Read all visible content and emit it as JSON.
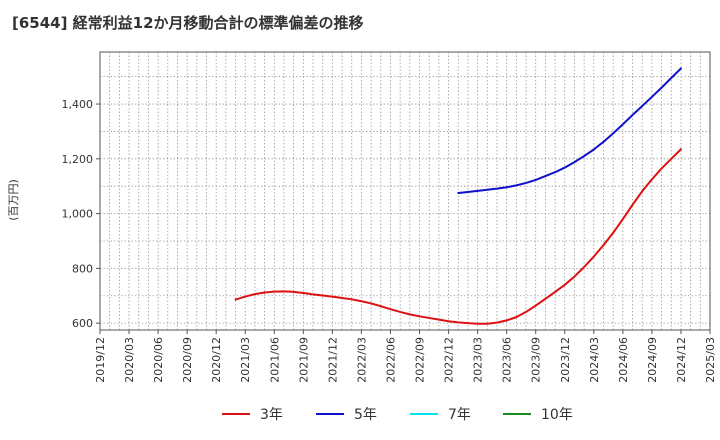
{
  "chart_data": {
    "type": "line",
    "title": "[6544]  経常利益12か月移動合計の標準偏差の推移",
    "ylabel": "(百万円)",
    "xlabel": "",
    "ylim": [
      575,
      1590
    ],
    "yticks": [
      600,
      800,
      1000,
      1200,
      1400
    ],
    "ytick_labels": [
      "600",
      "800",
      "1,000",
      "1,200",
      "1,400"
    ],
    "x_range": [
      "2019/12",
      "2025/03"
    ],
    "x_tick_labels": [
      "2019/12",
      "2020/03",
      "2020/06",
      "2020/09",
      "2020/12",
      "2021/03",
      "2021/06",
      "2021/09",
      "2021/12",
      "2022/03",
      "2022/06",
      "2022/09",
      "2022/12",
      "2023/03",
      "2023/06",
      "2023/09",
      "2023/12",
      "2024/03",
      "2024/06",
      "2024/09",
      "2024/12",
      "2025/03"
    ],
    "grid": true,
    "legend_position": "bottom",
    "series": [
      {
        "name": "3年",
        "color": "#dd1111",
        "x": [
          "2021/02",
          "2021/03",
          "2021/04",
          "2021/05",
          "2021/06",
          "2021/07",
          "2021/08",
          "2021/09",
          "2021/10",
          "2021/11",
          "2021/12",
          "2022/01",
          "2022/02",
          "2022/03",
          "2022/04",
          "2022/05",
          "2022/06",
          "2022/07",
          "2022/08",
          "2022/09",
          "2022/10",
          "2022/11",
          "2022/12",
          "2023/01",
          "2023/02",
          "2023/03",
          "2023/04",
          "2023/05",
          "2023/06",
          "2023/07",
          "2023/08",
          "2023/09",
          "2023/10",
          "2023/11",
          "2023/12",
          "2024/01",
          "2024/02",
          "2024/03",
          "2024/04",
          "2024/05",
          "2024/06",
          "2024/07",
          "2024/08",
          "2024/09",
          "2024/10",
          "2024/11",
          "2024/12"
        ],
        "values": [
          686,
          697,
          706,
          712,
          715,
          716,
          714,
          710,
          705,
          701,
          697,
          692,
          687,
          680,
          672,
          662,
          651,
          641,
          632,
          625,
          619,
          613,
          607,
          603,
          600,
          598,
          598,
          602,
          610,
          622,
          641,
          664,
          689,
          714,
          740,
          770,
          805,
          843,
          885,
          930,
          980,
          1032,
          1082,
          1125,
          1165,
          1200,
          1235
        ]
      },
      {
        "name": "5年",
        "color": "#1111cc",
        "x": [
          "2023/01",
          "2023/02",
          "2023/03",
          "2023/04",
          "2023/05",
          "2023/06",
          "2023/07",
          "2023/08",
          "2023/09",
          "2023/10",
          "2023/11",
          "2023/12",
          "2024/01",
          "2024/02",
          "2024/03",
          "2024/04",
          "2024/05",
          "2024/06",
          "2024/07",
          "2024/08",
          "2024/09",
          "2024/10",
          "2024/11",
          "2024/12"
        ],
        "values": [
          1075,
          1079,
          1083,
          1087,
          1091,
          1096,
          1103,
          1112,
          1123,
          1137,
          1151,
          1168,
          1188,
          1210,
          1234,
          1262,
          1293,
          1326,
          1360,
          1393,
          1426,
          1460,
          1495,
          1530
        ]
      },
      {
        "name": "7年",
        "color": "#00e5ee",
        "x": [],
        "values": []
      },
      {
        "name": "10年",
        "color": "#1a8a1a",
        "x": [],
        "values": []
      }
    ]
  }
}
